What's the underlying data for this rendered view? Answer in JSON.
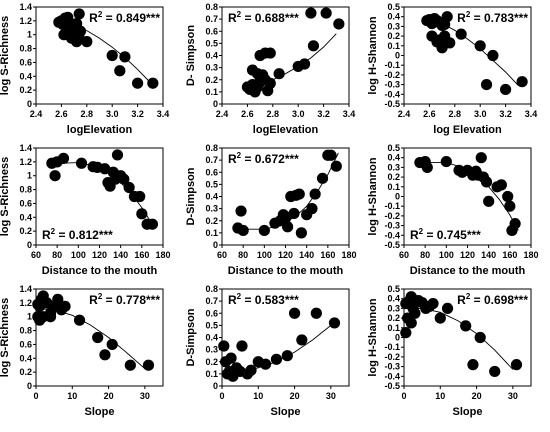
{
  "chart_data": [
    {
      "type": "scatter",
      "xlabel": "logElevation",
      "ylabel": "log S-Richness",
      "xlim": [
        2.4,
        3.4
      ],
      "ylim": [
        0,
        1.4
      ],
      "xticks": [
        "2.4",
        "2.6",
        "2.8",
        "3.0",
        "3.2",
        "3.4"
      ],
      "yticks": [
        "0",
        "0.2",
        "0.4",
        "0.6",
        "0.8",
        "1",
        "1.2",
        "1.4"
      ],
      "annotation": {
        "prefix": "R",
        "sup": "2",
        "text": " = 0.849***",
        "position": "top-right"
      },
      "points": [
        [
          2.58,
          1.18
        ],
        [
          2.6,
          1.2
        ],
        [
          2.61,
          1.15
        ],
        [
          2.63,
          1.24
        ],
        [
          2.64,
          1.21
        ],
        [
          2.65,
          1.25
        ],
        [
          2.66,
          1.1
        ],
        [
          2.68,
          1.13
        ],
        [
          2.69,
          1.08
        ],
        [
          2.7,
          1.15
        ],
        [
          2.72,
          1.16
        ],
        [
          2.74,
          1.3
        ],
        [
          2.75,
          1.05
        ],
        [
          2.62,
          1.0
        ],
        [
          2.68,
          0.95
        ],
        [
          2.72,
          0.9
        ],
        [
          2.74,
          0.95
        ],
        [
          2.8,
          0.9
        ],
        [
          3.0,
          0.7
        ],
        [
          3.06,
          0.48
        ],
        [
          3.1,
          0.68
        ],
        [
          3.2,
          0.3
        ],
        [
          3.32,
          0.3
        ]
      ],
      "fit": [
        [
          2.58,
          1.22
        ],
        [
          2.7,
          1.14
        ],
        [
          2.8,
          1.06
        ],
        [
          2.9,
          0.95
        ],
        [
          3.0,
          0.82
        ],
        [
          3.1,
          0.67
        ],
        [
          3.2,
          0.5
        ],
        [
          3.3,
          0.31
        ]
      ]
    },
    {
      "type": "scatter",
      "xlabel": "logElevation",
      "ylabel": "D- Simpson",
      "xlim": [
        2.4,
        3.4
      ],
      "ylim": [
        0,
        0.8
      ],
      "xticks": [
        "2.4",
        "2.6",
        "2.8",
        "3.0",
        "3.2",
        "3.4"
      ],
      "yticks": [
        "0",
        "0.1",
        "0.2",
        "0.3",
        "0.4",
        "0.5",
        "0.6",
        "0.7",
        "0.8"
      ],
      "annotation": {
        "prefix": "R",
        "sup": "2",
        "text": " = 0.688***",
        "position": "top-left"
      },
      "points": [
        [
          2.6,
          0.14
        ],
        [
          2.62,
          0.12
        ],
        [
          2.64,
          0.16
        ],
        [
          2.66,
          0.1
        ],
        [
          2.68,
          0.14
        ],
        [
          2.7,
          0.18
        ],
        [
          2.64,
          0.28
        ],
        [
          2.68,
          0.25
        ],
        [
          2.7,
          0.22
        ],
        [
          2.72,
          0.24
        ],
        [
          2.74,
          0.2
        ],
        [
          2.76,
          0.11
        ],
        [
          2.78,
          0.17
        ],
        [
          2.7,
          0.4
        ],
        [
          2.74,
          0.42
        ],
        [
          2.78,
          0.42
        ],
        [
          2.85,
          0.25
        ],
        [
          3.0,
          0.31
        ],
        [
          3.05,
          0.33
        ],
        [
          3.1,
          0.75
        ],
        [
          3.12,
          0.48
        ],
        [
          3.22,
          0.75
        ],
        [
          3.32,
          0.66
        ]
      ],
      "fit": [
        [
          2.6,
          0.13
        ],
        [
          2.7,
          0.16
        ],
        [
          2.8,
          0.2
        ],
        [
          2.9,
          0.25
        ],
        [
          3.0,
          0.31
        ],
        [
          3.1,
          0.38
        ],
        [
          3.2,
          0.47
        ],
        [
          3.3,
          0.58
        ]
      ]
    },
    {
      "type": "scatter",
      "xlabel": "log Elevation",
      "ylabel": "log H-Shannon",
      "xlim": [
        2.4,
        3.4
      ],
      "ylim": [
        -0.5,
        0.5
      ],
      "xticks": [
        "2.4",
        "2.6",
        "2.8",
        "3.0",
        "3.2",
        "3.4"
      ],
      "yticks": [
        "-0.5",
        "-0.4",
        "-0.3",
        "-0.2",
        "-0.1",
        "0",
        "0.1",
        "0.2",
        "0.3",
        "0.4",
        "0.5"
      ],
      "annotation": {
        "prefix": "R",
        "sup": "2",
        "text": " = 0.783***",
        "position": "top-right"
      },
      "points": [
        [
          2.58,
          0.36
        ],
        [
          2.6,
          0.37
        ],
        [
          2.62,
          0.33
        ],
        [
          2.64,
          0.38
        ],
        [
          2.66,
          0.36
        ],
        [
          2.68,
          0.34
        ],
        [
          2.7,
          0.31
        ],
        [
          2.72,
          0.32
        ],
        [
          2.74,
          0.4
        ],
        [
          2.62,
          0.2
        ],
        [
          2.66,
          0.14
        ],
        [
          2.68,
          0.16
        ],
        [
          2.7,
          0.08
        ],
        [
          2.72,
          0.2
        ],
        [
          2.76,
          0.13
        ],
        [
          2.85,
          0.22
        ],
        [
          3.0,
          0.1
        ],
        [
          3.05,
          -0.3
        ],
        [
          3.1,
          0.0
        ],
        [
          3.2,
          -0.35
        ],
        [
          3.33,
          -0.27
        ]
      ],
      "fit": [
        [
          2.58,
          0.39
        ],
        [
          2.7,
          0.33
        ],
        [
          2.8,
          0.26
        ],
        [
          2.9,
          0.17
        ],
        [
          3.0,
          0.07
        ],
        [
          3.1,
          -0.05
        ],
        [
          3.2,
          -0.17
        ],
        [
          3.3,
          -0.31
        ]
      ]
    },
    {
      "type": "scatter",
      "xlabel": "Distance to the mouth",
      "ylabel": "log S-Richness",
      "xlim": [
        60,
        180
      ],
      "ylim": [
        0,
        1.4
      ],
      "xticks": [
        "60",
        "80",
        "100",
        "120",
        "140",
        "160",
        "180"
      ],
      "yticks": [
        "0",
        "0.2",
        "0.4",
        "0.6",
        "0.8",
        "1",
        "1.2",
        "1.4"
      ],
      "annotation": {
        "prefix": "R",
        "sup": "2",
        "text": " = 0.812***",
        "position": "bottom-left"
      },
      "points": [
        [
          75,
          1.18
        ],
        [
          80,
          1.2
        ],
        [
          86,
          1.25
        ],
        [
          78,
          1.0
        ],
        [
          103,
          1.18
        ],
        [
          114,
          1.13
        ],
        [
          118,
          1.12
        ],
        [
          125,
          1.1
        ],
        [
          128,
          0.9
        ],
        [
          130,
          0.85
        ],
        [
          133,
          1.05
        ],
        [
          135,
          0.95
        ],
        [
          137,
          1.3
        ],
        [
          140,
          1.0
        ],
        [
          143,
          0.95
        ],
        [
          148,
          0.83
        ],
        [
          153,
          0.7
        ],
        [
          158,
          0.7
        ],
        [
          160,
          0.45
        ],
        [
          165,
          0.3
        ],
        [
          170,
          0.3
        ]
      ],
      "fit": [
        [
          72,
          1.13
        ],
        [
          85,
          1.18
        ],
        [
          100,
          1.19
        ],
        [
          115,
          1.14
        ],
        [
          130,
          1.02
        ],
        [
          140,
          0.9
        ],
        [
          150,
          0.74
        ],
        [
          160,
          0.54
        ],
        [
          170,
          0.3
        ]
      ]
    },
    {
      "type": "scatter",
      "xlabel": "Distance to the mouth",
      "ylabel": "D-Simpson",
      "xlim": [
        60,
        180
      ],
      "ylim": [
        0,
        0.8
      ],
      "xticks": [
        "60",
        "80",
        "100",
        "120",
        "140",
        "160",
        "180"
      ],
      "yticks": [
        "0",
        "0.1",
        "0.2",
        "0.3",
        "0.4",
        "0.5",
        "0.6",
        "0.7",
        "0.8"
      ],
      "annotation": {
        "prefix": "R",
        "sup": "2",
        "text": " = 0.672***",
        "position": "top-left"
      },
      "points": [
        [
          75,
          0.14
        ],
        [
          78,
          0.28
        ],
        [
          80,
          0.12
        ],
        [
          100,
          0.12
        ],
        [
          110,
          0.18
        ],
        [
          115,
          0.2
        ],
        [
          118,
          0.25
        ],
        [
          120,
          0.22
        ],
        [
          122,
          0.15
        ],
        [
          125,
          0.4
        ],
        [
          128,
          0.26
        ],
        [
          130,
          0.41
        ],
        [
          133,
          0.42
        ],
        [
          135,
          0.1
        ],
        [
          140,
          0.25
        ],
        [
          145,
          0.3
        ],
        [
          148,
          0.42
        ],
        [
          155,
          0.55
        ],
        [
          160,
          0.74
        ],
        [
          163,
          0.74
        ],
        [
          168,
          0.65
        ]
      ],
      "fit": [
        [
          72,
          0.14
        ],
        [
          85,
          0.13
        ],
        [
          100,
          0.13
        ],
        [
          115,
          0.16
        ],
        [
          130,
          0.24
        ],
        [
          140,
          0.32
        ],
        [
          150,
          0.44
        ],
        [
          160,
          0.58
        ],
        [
          170,
          0.76
        ]
      ]
    },
    {
      "type": "scatter",
      "xlabel": "Distance to the mouth",
      "ylabel": "log H-Shannon",
      "xlim": [
        60,
        180
      ],
      "ylim": [
        -0.5,
        0.5
      ],
      "xticks": [
        "60",
        "80",
        "100",
        "120",
        "140",
        "160",
        "180"
      ],
      "yticks": [
        "-0.5",
        "-0.4",
        "-0.3",
        "-0.2",
        "-0.1",
        "0",
        "0.1",
        "0.2",
        "0.3",
        "0.4",
        "0.5"
      ],
      "annotation": {
        "prefix": "R",
        "sup": "2",
        "text": " = 0.745***",
        "position": "bottom-left"
      },
      "points": [
        [
          75,
          0.35
        ],
        [
          80,
          0.36
        ],
        [
          82,
          0.3
        ],
        [
          100,
          0.36
        ],
        [
          112,
          0.27
        ],
        [
          115,
          0.25
        ],
        [
          120,
          0.27
        ],
        [
          125,
          0.22
        ],
        [
          128,
          0.26
        ],
        [
          130,
          0.22
        ],
        [
          133,
          0.4
        ],
        [
          135,
          0.2
        ],
        [
          138,
          0.15
        ],
        [
          140,
          -0.05
        ],
        [
          148,
          0.1
        ],
        [
          152,
          0.12
        ],
        [
          158,
          0.0
        ],
        [
          160,
          -0.1
        ],
        [
          162,
          -0.35
        ],
        [
          165,
          -0.28
        ]
      ],
      "fit": [
        [
          72,
          0.32
        ],
        [
          85,
          0.35
        ],
        [
          100,
          0.35
        ],
        [
          115,
          0.3
        ],
        [
          130,
          0.2
        ],
        [
          140,
          0.1
        ],
        [
          150,
          -0.03
        ],
        [
          160,
          -0.19
        ],
        [
          168,
          -0.35
        ]
      ]
    },
    {
      "type": "scatter",
      "xlabel": "Slope",
      "ylabel": "log S-Richness",
      "xlim": [
        0,
        35
      ],
      "ylim": [
        0,
        1.4
      ],
      "xticks": [
        "0",
        "10",
        "20",
        "30"
      ],
      "yticks": [
        "0",
        "0.2",
        "0.4",
        "0.6",
        "0.8",
        "1",
        "1.2",
        "1.4"
      ],
      "annotation": {
        "prefix": "R",
        "sup": "2",
        "text": " = 0.778***",
        "position": "top-right"
      },
      "points": [
        [
          0.5,
          1.18
        ],
        [
          1.0,
          1.15
        ],
        [
          1.5,
          1.25
        ],
        [
          2.0,
          1.3
        ],
        [
          3.0,
          1.2
        ],
        [
          4.0,
          1.05
        ],
        [
          5.0,
          1.15
        ],
        [
          6.0,
          1.25
        ],
        [
          7.0,
          1.1
        ],
        [
          8.0,
          1.15
        ],
        [
          0.5,
          1.0
        ],
        [
          1.0,
          0.95
        ],
        [
          2.0,
          1.0
        ],
        [
          4.0,
          1.0
        ],
        [
          12.0,
          0.95
        ],
        [
          17.0,
          0.7
        ],
        [
          19.0,
          0.45
        ],
        [
          21.0,
          0.6
        ],
        [
          26.0,
          0.3
        ],
        [
          31.0,
          0.3
        ]
      ],
      "fit": [
        [
          0,
          1.12
        ],
        [
          5,
          1.1
        ],
        [
          10,
          1.02
        ],
        [
          15,
          0.88
        ],
        [
          20,
          0.7
        ],
        [
          25,
          0.48
        ],
        [
          30,
          0.25
        ]
      ]
    },
    {
      "type": "scatter",
      "xlabel": "Slope",
      "ylabel": "D-Simpson",
      "xlim": [
        0,
        35
      ],
      "ylim": [
        0,
        0.8
      ],
      "xticks": [
        "0",
        "10",
        "20",
        "30"
      ],
      "yticks": [
        "0",
        "0.1",
        "0.2",
        "0.3",
        "0.4",
        "0.5",
        "0.6",
        "0.7",
        "0.8"
      ],
      "annotation": {
        "prefix": "R",
        "sup": "2",
        "text": " = 0.583***",
        "position": "top-left"
      },
      "points": [
        [
          0.5,
          0.33
        ],
        [
          1.0,
          0.2
        ],
        [
          1.5,
          0.1
        ],
        [
          2.0,
          0.12
        ],
        [
          2.5,
          0.23
        ],
        [
          3.0,
          0.08
        ],
        [
          4.0,
          0.15
        ],
        [
          5.0,
          0.12
        ],
        [
          5.5,
          0.33
        ],
        [
          7.0,
          0.1
        ],
        [
          8.0,
          0.13
        ],
        [
          10.0,
          0.2
        ],
        [
          12.0,
          0.18
        ],
        [
          15.0,
          0.22
        ],
        [
          18.0,
          0.25
        ],
        [
          20.0,
          0.6
        ],
        [
          22.0,
          0.38
        ],
        [
          26.0,
          0.6
        ],
        [
          31.0,
          0.52
        ]
      ],
      "fit": [
        [
          0,
          0.11
        ],
        [
          5,
          0.12
        ],
        [
          10,
          0.15
        ],
        [
          15,
          0.2
        ],
        [
          20,
          0.28
        ],
        [
          25,
          0.38
        ],
        [
          30,
          0.5
        ]
      ]
    },
    {
      "type": "scatter",
      "xlabel": "Slope",
      "ylabel": "log H-Shannon",
      "xlim": [
        0,
        35
      ],
      "ylim": [
        -0.5,
        0.5
      ],
      "xticks": [
        "0",
        "10",
        "20",
        "30"
      ],
      "yticks": [
        "-0.5",
        "-0.4",
        "-0.3",
        "-0.2",
        "-0.1",
        "0",
        "0.1",
        "0.2",
        "0.3",
        "0.4",
        "0.5"
      ],
      "annotation": {
        "prefix": "R",
        "sup": "2",
        "text": " = 0.698***",
        "position": "top-right"
      },
      "points": [
        [
          0.5,
          0.35
        ],
        [
          1.0,
          0.2
        ],
        [
          1.5,
          0.38
        ],
        [
          2.0,
          0.42
        ],
        [
          2.5,
          0.3
        ],
        [
          3.0,
          0.25
        ],
        [
          4.0,
          0.38
        ],
        [
          5.0,
          0.36
        ],
        [
          6.0,
          0.3
        ],
        [
          7.0,
          0.32
        ],
        [
          8.0,
          0.35
        ],
        [
          0.5,
          0.05
        ],
        [
          2.0,
          0.15
        ],
        [
          10.0,
          0.2
        ],
        [
          12.0,
          0.3
        ],
        [
          17.0,
          0.12
        ],
        [
          19.0,
          -0.28
        ],
        [
          21.0,
          0.0
        ],
        [
          25.0,
          -0.35
        ],
        [
          31.0,
          -0.28
        ]
      ],
      "fit": [
        [
          0,
          0.3
        ],
        [
          5,
          0.3
        ],
        [
          10,
          0.26
        ],
        [
          15,
          0.17
        ],
        [
          20,
          0.04
        ],
        [
          25,
          -0.13
        ],
        [
          30,
          -0.33
        ]
      ]
    }
  ]
}
